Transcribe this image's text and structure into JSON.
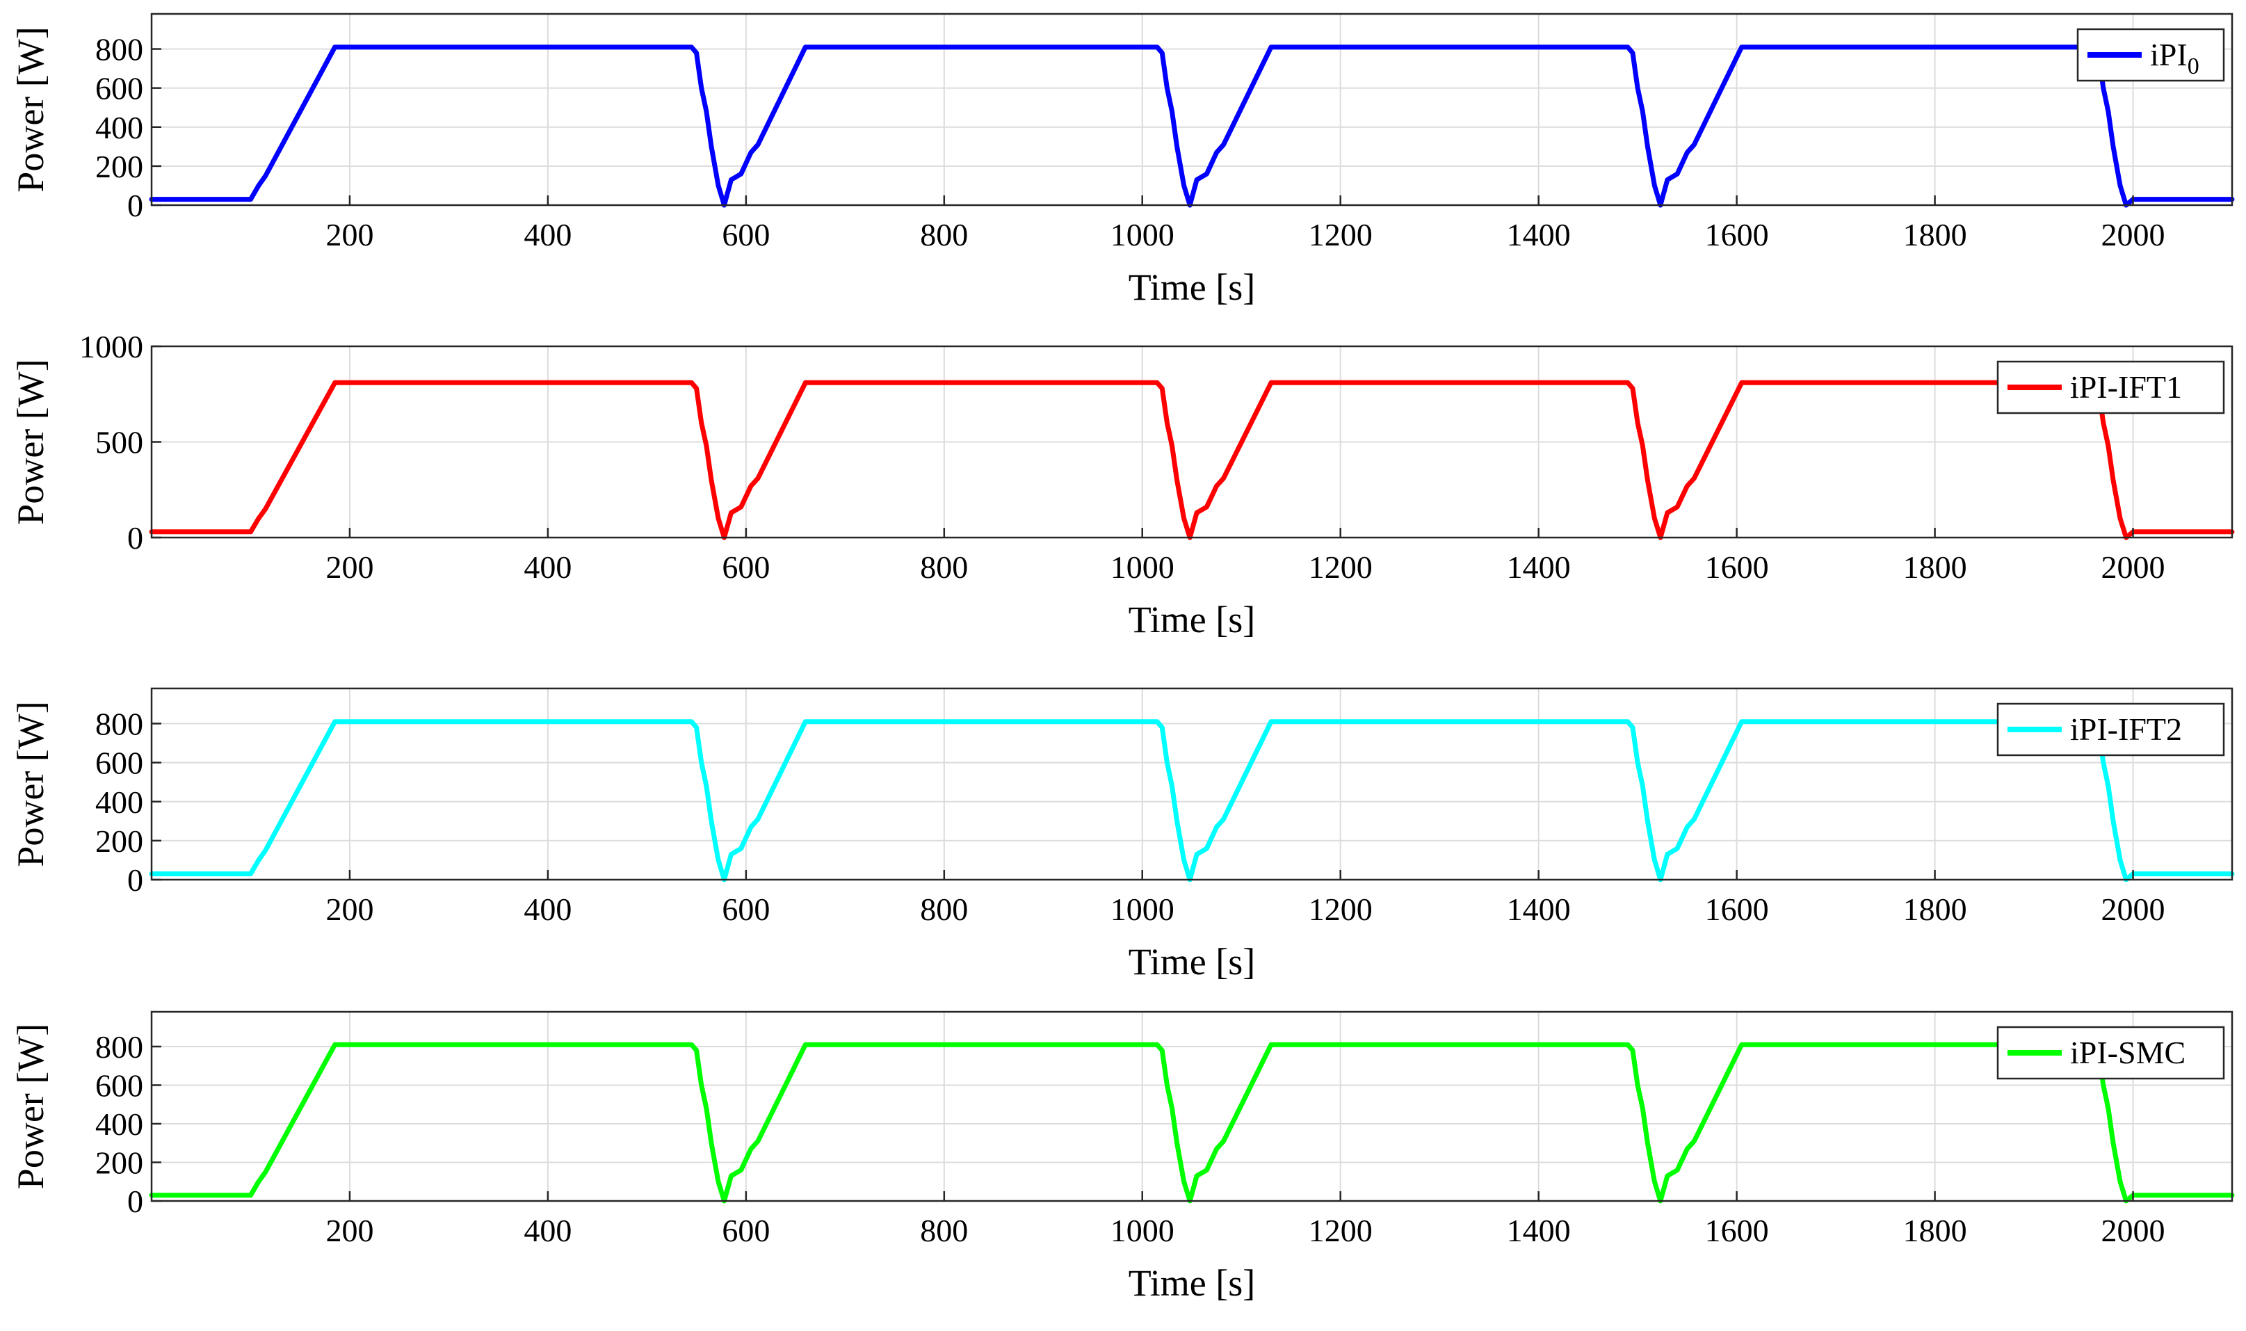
{
  "chart_data": [
    {
      "type": "line",
      "xlabel": "Time [s]",
      "ylabel": "Power [W]",
      "xlim": [
        0,
        2100
      ],
      "ylim": [
        0,
        980
      ],
      "xticks": [
        200,
        400,
        600,
        800,
        1000,
        1200,
        1400,
        1600,
        1800,
        2000
      ],
      "yticks": [
        0,
        200,
        400,
        600,
        800
      ],
      "legend": "top-right",
      "grid": true,
      "series": [
        {
          "name": "iPI",
          "name_subscript": "0",
          "color": "#0000ff",
          "x": [
            0,
            100,
            108,
            115,
            185,
            195,
            545,
            550,
            555,
            560,
            565,
            572,
            578,
            585,
            595,
            605,
            612,
            660,
            1015,
            1020,
            1025,
            1030,
            1035,
            1042,
            1048,
            1055,
            1065,
            1075,
            1082,
            1130,
            1490,
            1495,
            1500,
            1505,
            1510,
            1517,
            1523,
            1530,
            1540,
            1550,
            1557,
            1605,
            1960,
            1965,
            1970,
            1975,
            1980,
            1987,
            1993,
            2000,
            2100
          ],
          "y": [
            30,
            30,
            100,
            150,
            810,
            810,
            810,
            780,
            600,
            480,
            300,
            100,
            0,
            130,
            160,
            270,
            310,
            810,
            810,
            780,
            600,
            480,
            300,
            100,
            0,
            130,
            160,
            270,
            310,
            810,
            810,
            780,
            600,
            480,
            300,
            100,
            0,
            130,
            160,
            270,
            310,
            810,
            810,
            780,
            600,
            480,
            300,
            100,
            0,
            30,
            30
          ]
        }
      ]
    },
    {
      "type": "line",
      "xlabel": "Time [s]",
      "ylabel": "Power [W]",
      "xlim": [
        0,
        2100
      ],
      "ylim": [
        0,
        1000
      ],
      "xticks": [
        200,
        400,
        600,
        800,
        1000,
        1200,
        1400,
        1600,
        1800,
        2000
      ],
      "yticks": [
        0,
        500,
        1000
      ],
      "legend": "top-right",
      "grid": true,
      "series": [
        {
          "name": "iPI-IFT1",
          "color": "#ff0000",
          "x": [
            0,
            100,
            108,
            115,
            185,
            195,
            545,
            550,
            555,
            560,
            565,
            572,
            578,
            585,
            595,
            605,
            612,
            660,
            1015,
            1020,
            1025,
            1030,
            1035,
            1042,
            1048,
            1055,
            1065,
            1075,
            1082,
            1130,
            1490,
            1495,
            1500,
            1505,
            1510,
            1517,
            1523,
            1530,
            1540,
            1550,
            1557,
            1605,
            1960,
            1965,
            1970,
            1975,
            1980,
            1987,
            1993,
            2000,
            2100
          ],
          "y": [
            30,
            30,
            100,
            150,
            810,
            810,
            810,
            780,
            600,
            480,
            300,
            100,
            0,
            130,
            160,
            270,
            310,
            810,
            810,
            780,
            600,
            480,
            300,
            100,
            0,
            130,
            160,
            270,
            310,
            810,
            810,
            780,
            600,
            480,
            300,
            100,
            0,
            130,
            160,
            270,
            310,
            810,
            810,
            780,
            600,
            480,
            300,
            100,
            0,
            30,
            30
          ]
        }
      ]
    },
    {
      "type": "line",
      "xlabel": "Time [s]",
      "ylabel": "Power [W]",
      "xlim": [
        0,
        2100
      ],
      "ylim": [
        0,
        980
      ],
      "xticks": [
        200,
        400,
        600,
        800,
        1000,
        1200,
        1400,
        1600,
        1800,
        2000
      ],
      "yticks": [
        0,
        200,
        400,
        600,
        800
      ],
      "legend": "top-right",
      "grid": true,
      "series": [
        {
          "name": "iPI-IFT2",
          "color": "#00ffff",
          "x": [
            0,
            100,
            108,
            115,
            185,
            195,
            545,
            550,
            555,
            560,
            565,
            572,
            578,
            585,
            595,
            605,
            612,
            660,
            1015,
            1020,
            1025,
            1030,
            1035,
            1042,
            1048,
            1055,
            1065,
            1075,
            1082,
            1130,
            1490,
            1495,
            1500,
            1505,
            1510,
            1517,
            1523,
            1530,
            1540,
            1550,
            1557,
            1605,
            1960,
            1965,
            1970,
            1975,
            1980,
            1987,
            1993,
            2000,
            2100
          ],
          "y": [
            30,
            30,
            100,
            150,
            810,
            810,
            810,
            780,
            600,
            480,
            300,
            100,
            0,
            130,
            160,
            270,
            310,
            810,
            810,
            780,
            600,
            480,
            300,
            100,
            0,
            130,
            160,
            270,
            310,
            810,
            810,
            780,
            600,
            480,
            300,
            100,
            0,
            130,
            160,
            270,
            310,
            810,
            810,
            780,
            600,
            480,
            300,
            100,
            0,
            30,
            30
          ]
        }
      ]
    },
    {
      "type": "line",
      "xlabel": "Time [s]",
      "ylabel": "Power [W]",
      "xlim": [
        0,
        2100
      ],
      "ylim": [
        0,
        980
      ],
      "xticks": [
        200,
        400,
        600,
        800,
        1000,
        1200,
        1400,
        1600,
        1800,
        2000
      ],
      "yticks": [
        0,
        200,
        400,
        600,
        800
      ],
      "legend": "top-right",
      "grid": true,
      "series": [
        {
          "name": "iPI-SMC",
          "color": "#00ff00",
          "x": [
            0,
            100,
            108,
            115,
            185,
            195,
            545,
            550,
            555,
            560,
            565,
            572,
            578,
            585,
            595,
            605,
            612,
            660,
            1015,
            1020,
            1025,
            1030,
            1035,
            1042,
            1048,
            1055,
            1065,
            1075,
            1082,
            1130,
            1490,
            1495,
            1500,
            1505,
            1510,
            1517,
            1523,
            1530,
            1540,
            1550,
            1557,
            1605,
            1960,
            1965,
            1970,
            1975,
            1980,
            1987,
            1993,
            2000,
            2100
          ],
          "y": [
            30,
            30,
            100,
            150,
            810,
            810,
            810,
            780,
            600,
            480,
            300,
            100,
            0,
            130,
            160,
            270,
            310,
            810,
            810,
            780,
            600,
            480,
            300,
            100,
            0,
            130,
            160,
            270,
            310,
            810,
            810,
            780,
            600,
            480,
            300,
            100,
            0,
            130,
            160,
            270,
            310,
            810,
            810,
            780,
            600,
            480,
            300,
            100,
            0,
            30,
            30
          ]
        }
      ]
    }
  ]
}
